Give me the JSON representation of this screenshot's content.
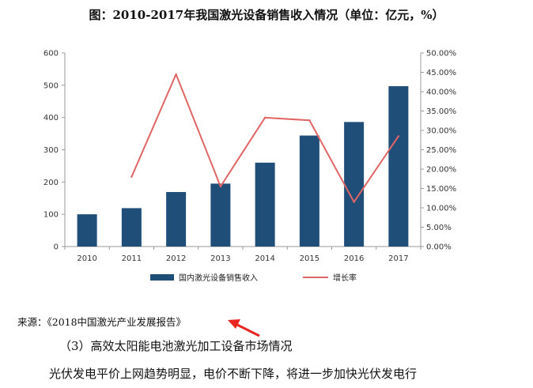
{
  "title": "图：2010-2017年我国激光设备销售收入情况（单位：亿元，%）",
  "chart_data": {
    "type": "bar",
    "categories": [
      "2010",
      "2011",
      "2012",
      "2013",
      "2014",
      "2015",
      "2016",
      "2017"
    ],
    "series": [
      {
        "name": "国内激光设备销售收入",
        "type": "bar",
        "axis": "left",
        "color": "#1f4e79",
        "values": [
          100,
          119,
          169,
          195,
          260,
          344,
          386,
          497
        ]
      },
      {
        "name": "增长率",
        "type": "line",
        "axis": "right",
        "color": "#e06666",
        "values": [
          null,
          18.0,
          44.5,
          15.5,
          33.3,
          32.6,
          11.5,
          28.5
        ]
      }
    ],
    "y_left": {
      "min": 0,
      "max": 600,
      "ticks": [
        "0",
        "100",
        "200",
        "300",
        "400",
        "500",
        "600"
      ]
    },
    "y_right": {
      "min": 0,
      "max": 50,
      "ticks": [
        "0.00%",
        "5.00%",
        "10.00%",
        "15.00%",
        "20.00%",
        "25.00%",
        "30.00%",
        "35.00%",
        "40.00%",
        "45.00%",
        "50.00%"
      ]
    },
    "grid": false,
    "legend": "bottom"
  },
  "source": "来源：《2018中国激光产业发展报告》",
  "body_line_1": "（3）高效太阳能电池激光加工设备市场情况",
  "body_line_2": "光伏发电平价上网趋势明显，电价不断下降，将进一步加快光伏发电行"
}
